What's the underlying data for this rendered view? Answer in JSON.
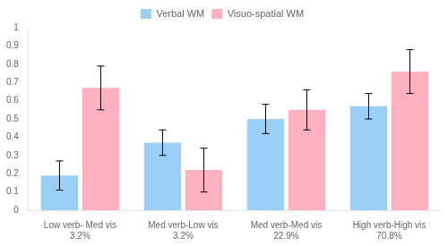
{
  "chart_data": {
    "type": "bar",
    "categories": [
      "Low verb- Med vis\n3.2%",
      "Med verb-Low vis\n3.2%",
      "Med verb-Med vis\n22.9%",
      "High verb-High vis\n70.8%"
    ],
    "series": [
      {
        "name": "Verbal WM",
        "values": [
          0.19,
          0.37,
          0.5,
          0.57
        ],
        "errors": [
          0.08,
          0.07,
          0.08,
          0.07
        ]
      },
      {
        "name": "Visuo-spatial WM",
        "values": [
          0.67,
          0.22,
          0.55,
          0.76
        ],
        "errors": [
          0.12,
          0.12,
          0.11,
          0.12
        ]
      }
    ],
    "ylim": [
      0,
      1
    ],
    "yticks": [
      0,
      0.1,
      0.2,
      0.3,
      0.4,
      0.5,
      0.6,
      0.7,
      0.8,
      0.9,
      1
    ],
    "grid": false,
    "legend": "top"
  }
}
